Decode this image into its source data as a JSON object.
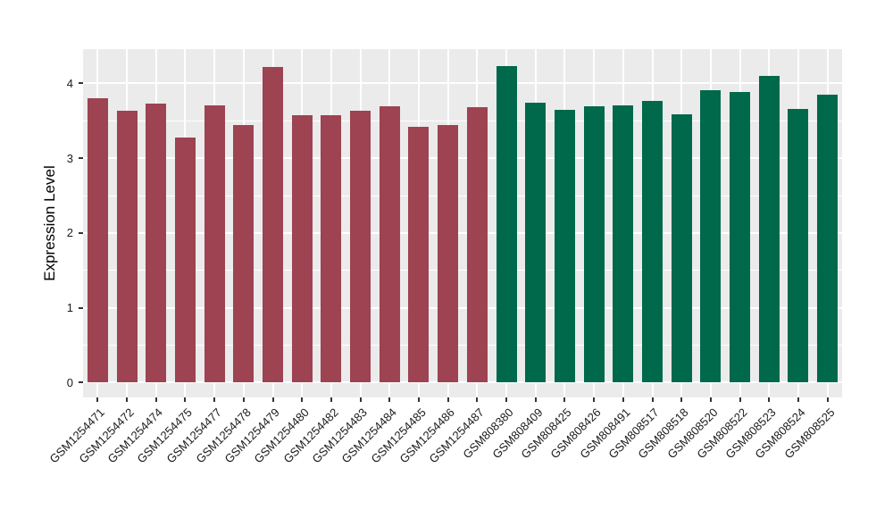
{
  "figure": {
    "background_color": "#ffffff",
    "panel_color": "#ebebeb",
    "gridline_color": "#ffffff",
    "tick_color": "#333333",
    "text_color": "#1a1a1a"
  },
  "chart_data": {
    "type": "bar",
    "title": "",
    "xlabel": "",
    "ylabel": "Expression Level",
    "ylim": [
      -0.2,
      4.46
    ],
    "yticks": [
      0,
      1,
      2,
      3,
      4
    ],
    "y_minor_ticks": [
      0.5,
      1.5,
      2.5,
      3.5
    ],
    "grid": "on",
    "legend_position": "none",
    "bar_colors": {
      "group1": "#9d4351",
      "group2": "#00684b"
    },
    "categories": [
      "GSM1254471",
      "GSM1254472",
      "GSM1254474",
      "GSM1254475",
      "GSM1254477",
      "GSM1254478",
      "GSM1254479",
      "GSM1254480",
      "GSM1254482",
      "GSM1254483",
      "GSM1254484",
      "GSM1254485",
      "GSM1254486",
      "GSM1254487",
      "GSM808380",
      "GSM808409",
      "GSM808425",
      "GSM808426",
      "GSM808491",
      "GSM808517",
      "GSM808518",
      "GSM808520",
      "GSM808522",
      "GSM808523",
      "GSM808524",
      "GSM808525"
    ],
    "values": [
      3.8,
      3.64,
      3.73,
      3.28,
      3.71,
      3.44,
      4.22,
      3.57,
      3.57,
      3.64,
      3.69,
      3.42,
      3.44,
      3.68,
      4.23,
      3.74,
      3.65,
      3.7,
      3.71,
      3.77,
      3.59,
      3.91,
      3.89,
      4.1,
      3.66,
      3.85
    ],
    "groups": [
      "group1",
      "group1",
      "group1",
      "group1",
      "group1",
      "group1",
      "group1",
      "group1",
      "group1",
      "group1",
      "group1",
      "group1",
      "group1",
      "group1",
      "group2",
      "group2",
      "group2",
      "group2",
      "group2",
      "group2",
      "group2",
      "group2",
      "group2",
      "group2",
      "group2",
      "group2"
    ]
  }
}
